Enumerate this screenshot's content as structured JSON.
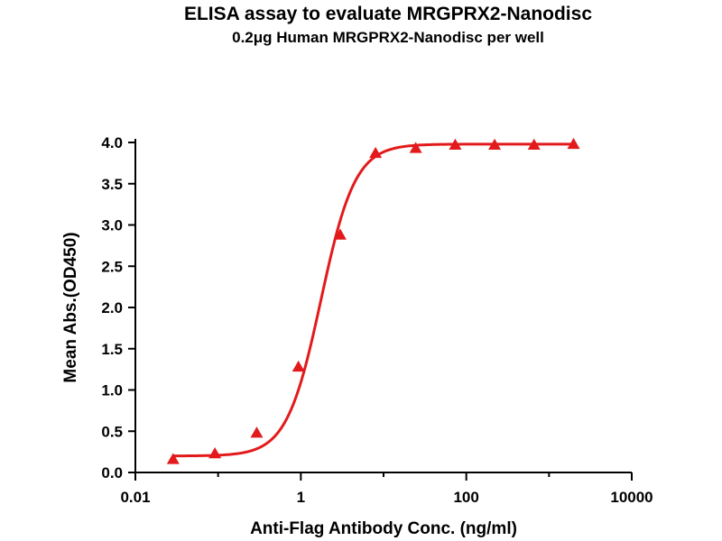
{
  "chart_data": {
    "type": "scatter",
    "title": "ELISA assay to evaluate MRGPRX2-Nanodisc",
    "subtitle": "0.2μg Human MRGPRX2-Nanodisc per well",
    "xlabel": "Anti-Flag Antibody Conc. (ng/ml)",
    "ylabel": "Mean Abs.(OD450)",
    "xscale": "log",
    "xlim": [
      0.01,
      10000
    ],
    "ylim": [
      0,
      4.0
    ],
    "xticks": [
      "0.01",
      "1",
      "100",
      "10000"
    ],
    "yticks": [
      "0.0",
      "0.5",
      "1.0",
      "1.5",
      "2.0",
      "2.5",
      "3.0",
      "3.5",
      "4.0"
    ],
    "grid": false,
    "color": "#e31a1c",
    "marker": "triangle",
    "series": [
      {
        "x": [
          0.0286,
          0.0915,
          0.293,
          0.935,
          2.99,
          8.0,
          24.5,
          73.5,
          220,
          659,
          1980
        ],
        "y": [
          0.16,
          0.23,
          0.48,
          1.28,
          2.88,
          3.87,
          3.93,
          3.97,
          3.97,
          3.97,
          3.98
        ]
      }
    ],
    "fit_curve": "4PL"
  }
}
